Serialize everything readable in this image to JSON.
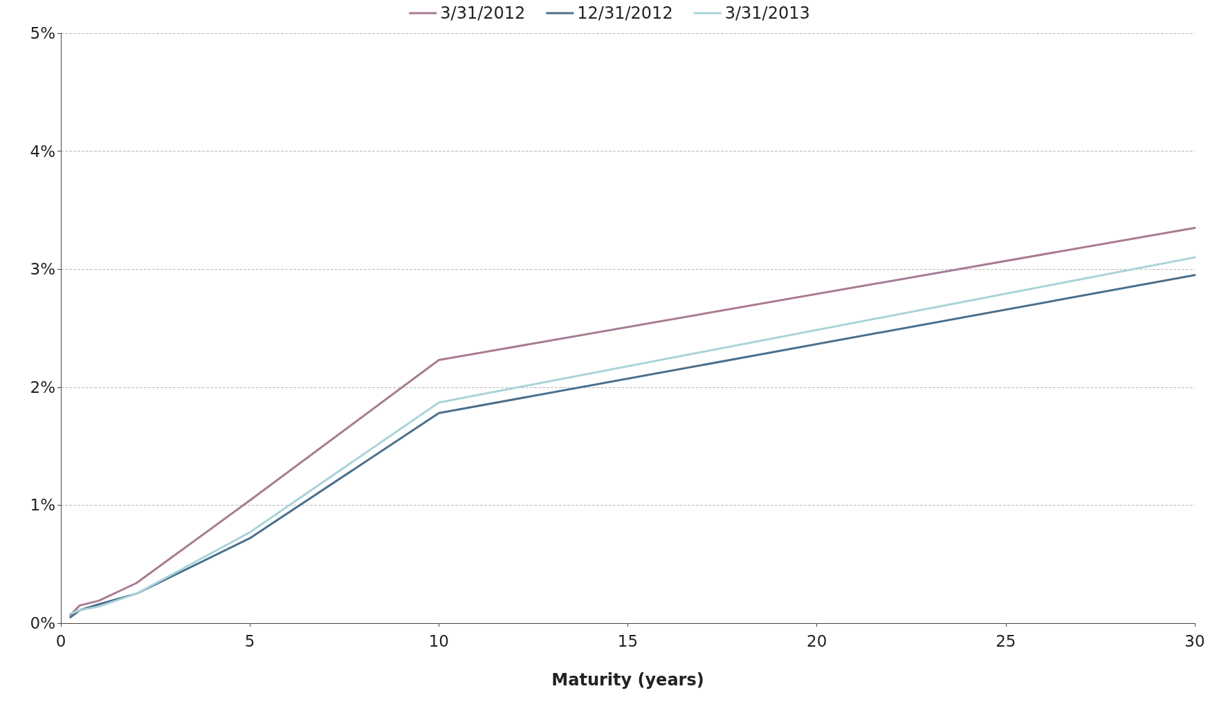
{
  "chart_data": {
    "type": "line",
    "xlabel": "Maturity (years)",
    "x": [
      0.25,
      0.5,
      1,
      2,
      5,
      10,
      30
    ],
    "series": [
      {
        "name": "3/31/2012",
        "color": "#a87b93",
        "values": [
          0.07,
          0.15,
          0.19,
          0.34,
          1.04,
          2.23,
          3.35
        ]
      },
      {
        "name": "12/31/2012",
        "color": "#4a6f8c",
        "values": [
          0.05,
          0.11,
          0.16,
          0.25,
          0.72,
          1.78,
          2.95
        ]
      },
      {
        "name": "3/31/2013",
        "color": "#a9d3da",
        "values": [
          0.08,
          0.11,
          0.14,
          0.25,
          0.77,
          1.87,
          3.1
        ]
      }
    ],
    "xlim": [
      0,
      30
    ],
    "xticks": [
      0,
      5,
      10,
      15,
      20,
      25,
      30
    ],
    "ylim": [
      0,
      5
    ],
    "yticks": [
      {
        "value": 0,
        "label": "0%"
      },
      {
        "value": 1,
        "label": "1%"
      },
      {
        "value": 2,
        "label": "2%"
      },
      {
        "value": 3,
        "label": "3%"
      },
      {
        "value": 4,
        "label": "4%"
      },
      {
        "value": 5,
        "label": "5%"
      }
    ],
    "grid": "y",
    "legend": "top",
    "marker": "none",
    "line_style": "solid"
  }
}
